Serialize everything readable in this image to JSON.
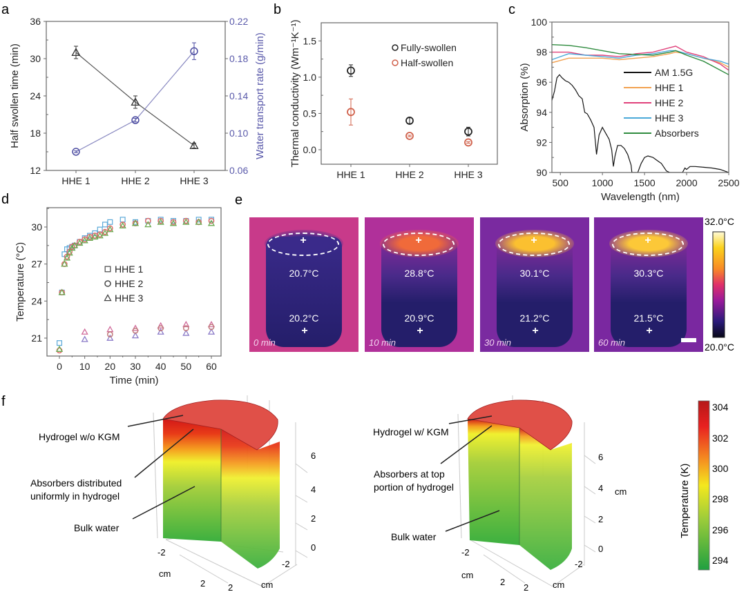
{
  "panel_labels": {
    "a": "a",
    "b": "b",
    "c": "c",
    "d": "d",
    "e": "e",
    "f": "f"
  },
  "chart_data": [
    {
      "id": "a",
      "type": "line",
      "categories": [
        "HHE 1",
        "HHE 2",
        "HHE 3"
      ],
      "ylabel": "Half swollen time (min)",
      "y2label": "Water transport rate (g/min)",
      "ylim": [
        12,
        36
      ],
      "yticks": [
        12,
        18,
        24,
        30,
        36
      ],
      "y2lim": [
        0.06,
        0.22
      ],
      "y2ticks": [
        "0.06",
        "0.10",
        "0.14",
        "0.18",
        "0.22"
      ],
      "series": [
        {
          "name": "Half swollen time",
          "axis": "left",
          "marker": "triangle",
          "color": "#333333",
          "values": [
            31.0,
            23.0,
            16.0
          ],
          "errors": [
            1.0,
            1.0,
            0.4
          ]
        },
        {
          "name": "Water transport rate",
          "axis": "right",
          "marker": "circle",
          "color": "#4a4aa0",
          "values": [
            0.08,
            0.114,
            0.188
          ],
          "errors": [
            0.001,
            0.002,
            0.009
          ]
        }
      ],
      "y2color": "#5a5aaa"
    },
    {
      "id": "b",
      "type": "scatter",
      "categories": [
        "HHE 1",
        "HHE 2",
        "HHE 3"
      ],
      "ylabel": "Thermal conductivity (Wm⁻¹K⁻¹)",
      "ylim": [
        -0.2,
        1.75
      ],
      "yticks": [
        "0.0",
        "0.5",
        "1.0",
        "1.5"
      ],
      "legend": "top-right",
      "series": [
        {
          "name": "Fully-swollen",
          "color": "#222222",
          "values": [
            1.09,
            0.4,
            0.25
          ],
          "errors": [
            0.08,
            0.04,
            0.06
          ]
        },
        {
          "name": "Half-swollen",
          "color": "#d0604a",
          "values": [
            0.52,
            0.19,
            0.1
          ],
          "errors": [
            0.18,
            0.01,
            0.01
          ]
        }
      ]
    },
    {
      "id": "c",
      "type": "line",
      "xlabel": "Wavelength (nm)",
      "ylabel": "Absorption (%)",
      "xlim": [
        400,
        2500
      ],
      "ylim": [
        90,
        100
      ],
      "xticks": [
        500,
        1000,
        1500,
        2000,
        2500
      ],
      "yticks": [
        90,
        92,
        94,
        96,
        98,
        100
      ],
      "legend": "right",
      "series": [
        {
          "name": "AM 1.5G",
          "color": "#111111",
          "x": [
            400,
            430,
            460,
            490,
            520,
            560,
            600,
            640,
            680,
            720,
            760,
            790,
            820,
            860,
            900,
            930,
            960,
            1000,
            1040,
            1080,
            1110,
            1130,
            1150,
            1180,
            1220,
            1260,
            1300,
            1340,
            1350,
            1420,
            1460,
            1500,
            1540,
            1600,
            1650,
            1700,
            1760,
            1800,
            1950,
            1980,
            2000,
            2040,
            2100,
            2200,
            2300,
            2400,
            2500
          ],
          "y": [
            94.8,
            95.4,
            96.3,
            96.5,
            96.3,
            96.1,
            96.0,
            95.8,
            95.5,
            95.1,
            94.9,
            94.0,
            93.9,
            93.5,
            93.0,
            91.2,
            92.5,
            93.0,
            92.6,
            92.2,
            91.5,
            90.4,
            91.1,
            91.8,
            91.8,
            91.6,
            91.2,
            90.5,
            90.0,
            90.0,
            90.6,
            91.0,
            91.1,
            91.0,
            90.8,
            90.6,
            90.1,
            90.0,
            90.0,
            90.3,
            90.2,
            90.4,
            90.4,
            90.35,
            90.3,
            90.2,
            90.0
          ]
        },
        {
          "name": "HHE 1",
          "color": "#f2a150",
          "x": [
            400,
            600,
            800,
            1000,
            1200,
            1400,
            1600,
            1800,
            1870,
            2000,
            2200,
            2400,
            2500
          ],
          "y": [
            97.3,
            97.6,
            97.6,
            97.6,
            97.5,
            97.6,
            97.7,
            97.9,
            98.0,
            97.9,
            97.6,
            97.3,
            97.0
          ]
        },
        {
          "name": "HHE 2",
          "color": "#e0407a",
          "x": [
            400,
            600,
            800,
            1000,
            1200,
            1400,
            1600,
            1800,
            1870,
            2000,
            2200,
            2400,
            2500
          ],
          "y": [
            98.0,
            98.0,
            97.8,
            97.8,
            97.7,
            97.9,
            98.0,
            98.3,
            98.4,
            98.0,
            97.7,
            97.2,
            96.8
          ]
        },
        {
          "name": "HHE 3",
          "color": "#4aa8d8",
          "x": [
            400,
            600,
            800,
            1000,
            1200,
            1400,
            1600,
            1800,
            1870,
            2000,
            2200,
            2400,
            2500
          ],
          "y": [
            97.5,
            97.9,
            97.8,
            97.7,
            97.6,
            97.8,
            97.9,
            98.1,
            98.1,
            97.9,
            97.6,
            97.4,
            97.2
          ]
        },
        {
          "name": "Absorbers",
          "color": "#2e8b3e",
          "x": [
            400,
            600,
            800,
            1000,
            1200,
            1400,
            1600,
            1800,
            1870,
            2000,
            2200,
            2400,
            2500
          ],
          "y": [
            98.5,
            98.45,
            98.3,
            98.1,
            97.9,
            97.85,
            97.8,
            98.0,
            98.1,
            97.8,
            97.4,
            96.8,
            96.5
          ]
        }
      ]
    },
    {
      "id": "d",
      "type": "scatter",
      "xlabel": "Time (min)",
      "ylabel": "Temperature (°C)",
      "xlim": [
        -5,
        65
      ],
      "ylim": [
        19.5,
        31.5
      ],
      "xticks": [
        0,
        10,
        20,
        30,
        40,
        50,
        60
      ],
      "yticks": [
        21,
        24,
        27,
        30
      ],
      "legend": "center",
      "series": [
        {
          "name": "HHE 1",
          "marker": "square",
          "color": "#5aa8d8",
          "x": [
            0,
            1,
            2,
            3,
            4,
            5,
            6,
            8,
            10,
            12,
            14,
            16,
            18,
            20,
            25,
            30,
            35,
            40,
            45,
            50,
            55,
            60
          ],
          "y": [
            20.6,
            24.7,
            27.8,
            28.2,
            28.3,
            28.4,
            28.5,
            28.8,
            29.1,
            29.3,
            29.5,
            29.8,
            30.2,
            30.4,
            30.6,
            30.4,
            30.5,
            30.6,
            30.5,
            30.5,
            30.6,
            30.6
          ]
        },
        {
          "name": "HHE 2",
          "marker": "circle",
          "color": "#e06a6a",
          "x": [
            0,
            1,
            2,
            3,
            4,
            5,
            6,
            8,
            10,
            12,
            14,
            16,
            18,
            20,
            25,
            30,
            35,
            40,
            45,
            50,
            55,
            60
          ],
          "y": [
            20.0,
            24.7,
            27.0,
            27.6,
            28.0,
            28.4,
            28.5,
            28.8,
            29.0,
            29.2,
            29.3,
            29.4,
            29.6,
            29.9,
            30.2,
            30.3,
            30.5,
            30.5,
            30.4,
            30.5,
            30.4,
            30.5
          ]
        },
        {
          "name": "HHE 3",
          "marker": "triangle",
          "color": "#6aa84f",
          "x": [
            0,
            1,
            2,
            3,
            4,
            5,
            6,
            8,
            10,
            12,
            14,
            16,
            18,
            20,
            25,
            30,
            35,
            40,
            45,
            50,
            55,
            60
          ],
          "y": [
            20.1,
            24.7,
            27.0,
            27.5,
            27.9,
            28.3,
            28.5,
            28.7,
            28.9,
            29.1,
            29.2,
            29.3,
            29.5,
            29.8,
            30.1,
            30.3,
            30.2,
            30.4,
            30.3,
            30.4,
            30.4,
            30.3
          ]
        },
        {
          "name": "HHE bottom (pink)",
          "marker": "triangle",
          "color": "#d06a9a",
          "legend": false,
          "x": [
            10,
            20,
            30,
            40,
            50,
            60
          ],
          "y": [
            21.5,
            21.7,
            21.8,
            22.0,
            22.1,
            22.1
          ]
        },
        {
          "name": "HHE bottom (purple)",
          "marker": "triangle",
          "color": "#8a7ac8",
          "legend": false,
          "x": [
            10,
            20,
            30,
            40,
            50,
            60
          ],
          "y": [
            20.9,
            21.0,
            21.2,
            21.5,
            21.4,
            21.5
          ]
        },
        {
          "name": "HHE bottom (mid)",
          "marker": "circle",
          "color": "#c07a7a",
          "legend": false,
          "x": [
            20,
            30,
            40,
            50,
            60
          ],
          "y": [
            21.3,
            21.6,
            21.8,
            21.8,
            21.9
          ]
        }
      ]
    }
  ],
  "thermal_images": {
    "panels": [
      {
        "time": "0 min",
        "top_temp": "20.7°C",
        "bottom_temp": "20.2°C",
        "top_color": "#3a2a8a"
      },
      {
        "time": "10 min",
        "top_temp": "28.8°C",
        "bottom_temp": "20.9°C",
        "top_color": "#f06a3a"
      },
      {
        "time": "30 min",
        "top_temp": "30.1°C",
        "bottom_temp": "21.2°C",
        "top_color": "#fbc030"
      },
      {
        "time": "60 min",
        "top_temp": "30.3°C",
        "bottom_temp": "21.5°C",
        "top_color": "#fcc838"
      }
    ],
    "colorbar_max": "32.0°C",
    "colorbar_min": "20.0°C"
  },
  "simulation": {
    "left": {
      "label_top": "Hydrogel w/o KGM",
      "label_mid_1": "Absorbers distributed",
      "label_mid_2": "uniformly in hydrogel",
      "label_bottom": "Bulk water"
    },
    "right": {
      "label_top": "Hydrogel w/ KGM",
      "label_mid_1": "Absorbers at top",
      "label_mid_2": "portion of hydrogel",
      "label_bottom": "Bulk water"
    },
    "z_ticks": [
      "0",
      "2",
      "4",
      "6"
    ],
    "axis_unit": "cm",
    "xy_ticks": [
      "-2",
      "2",
      "2",
      "-2"
    ],
    "colorbar_title": "Temperature (K)",
    "colorbar_ticks": [
      "304",
      "302",
      "300",
      "298",
      "296",
      "294"
    ]
  }
}
